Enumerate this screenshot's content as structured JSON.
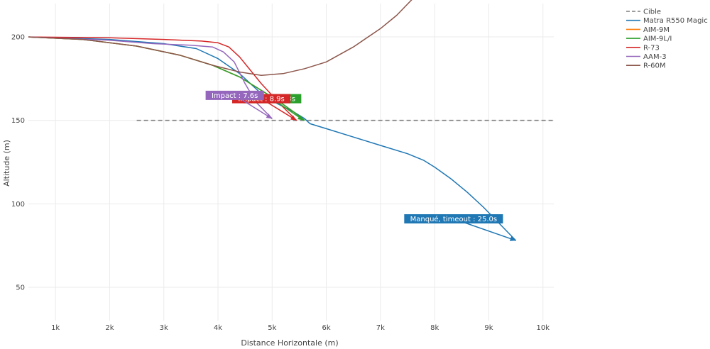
{
  "chart_data": {
    "type": "line",
    "title": "",
    "xlabel": "Distance Horizontale (m)",
    "ylabel": "Altitude (m)",
    "xlim": [
      500,
      10200
    ],
    "ylim": [
      30,
      220
    ],
    "x_ticks": [
      1000,
      2000,
      3000,
      4000,
      5000,
      6000,
      7000,
      8000,
      9000,
      10000
    ],
    "x_tick_labels": [
      "1k",
      "2k",
      "3k",
      "4k",
      "5k",
      "6k",
      "7k",
      "8k",
      "9k",
      "10k"
    ],
    "y_ticks": [
      50,
      100,
      150,
      200
    ],
    "y_tick_labels": [
      "50",
      "100",
      "150",
      "200"
    ],
    "grid": true,
    "legend": "top-right",
    "series": [
      {
        "name": "Cible",
        "color": "#7f7f7f",
        "dash": true,
        "x": [
          2500,
          10200
        ],
        "y": [
          150,
          150
        ]
      },
      {
        "name": "Matra R550 Magic 2",
        "color": "#1f77b4",
        "x": [
          500,
          2000,
          3000,
          3600,
          4000,
          4400,
          4800,
          5100,
          5400,
          5600,
          5700,
          6000,
          6500,
          7000,
          7500,
          7800,
          8000,
          8300,
          8600,
          8900,
          9200,
          9500
        ],
        "y": [
          200,
          198.5,
          196,
          193,
          187,
          178,
          166,
          160,
          155,
          151,
          148,
          145,
          140,
          135,
          130,
          126,
          122,
          115,
          107,
          98,
          88,
          78
        ]
      },
      {
        "name": "AIM-9M",
        "color": "#ff7f0e",
        "x": [
          500,
          1500,
          2500,
          3300,
          3900,
          4400,
          4800,
          5100,
          5400,
          5550
        ],
        "y": [
          200,
          198.5,
          194.5,
          189,
          183,
          176,
          168,
          162,
          155,
          151
        ]
      },
      {
        "name": "AIM-9L/I",
        "color": "#2ca02c",
        "x": [
          500,
          1500,
          2500,
          3300,
          3900,
          4400,
          4800,
          5100,
          5400,
          5600
        ],
        "y": [
          200,
          198.5,
          194.5,
          189,
          183,
          176,
          168,
          162,
          155,
          150
        ]
      },
      {
        "name": "R-73",
        "color": "#d62728",
        "x": [
          500,
          2000,
          3000,
          3700,
          4000,
          4200,
          4400,
          4600,
          4800,
          5000,
          5200,
          5450
        ],
        "y": [
          200,
          199.5,
          198.5,
          197.5,
          196.5,
          194,
          188,
          180,
          172,
          165,
          158,
          150
        ]
      },
      {
        "name": "AAM-3",
        "color": "#9467bd",
        "x": [
          500,
          2000,
          2800,
          3500,
          3900,
          4100,
          4300,
          4500,
          4700,
          5000
        ],
        "y": [
          200,
          198,
          196,
          195,
          194,
          191,
          185,
          172,
          161,
          151
        ]
      },
      {
        "name": "R-60M",
        "color": "#8c564b",
        "x": [
          500,
          1500,
          2500,
          3300,
          3900,
          4400,
          4800,
          5200,
          5600,
          6000,
          6500,
          7000,
          7300,
          7600,
          7800
        ],
        "y": [
          200,
          198.5,
          194.5,
          189,
          183,
          179,
          177,
          178,
          181,
          185,
          194,
          205,
          213,
          223,
          230
        ]
      }
    ],
    "annotations": [
      {
        "text": "Manqué, timeout : 25.0s",
        "color": "#1f77b4",
        "x": 9500,
        "y": 78,
        "ax": 8350,
        "ay": 91
      },
      {
        "text": "Impact : 8.3s",
        "color": "#2ca02c",
        "x": 5580,
        "y": 150,
        "ax": 5000,
        "ay": 163
      },
      {
        "text": "Impact : 8.9s",
        "color": "#d62728",
        "x": 5450,
        "y": 150,
        "ax": 4800,
        "ay": 163
      },
      {
        "text": "Impact : 7.6s",
        "color": "#9467bd",
        "x": 5000,
        "y": 151,
        "ax": 4310,
        "ay": 165
      }
    ]
  }
}
